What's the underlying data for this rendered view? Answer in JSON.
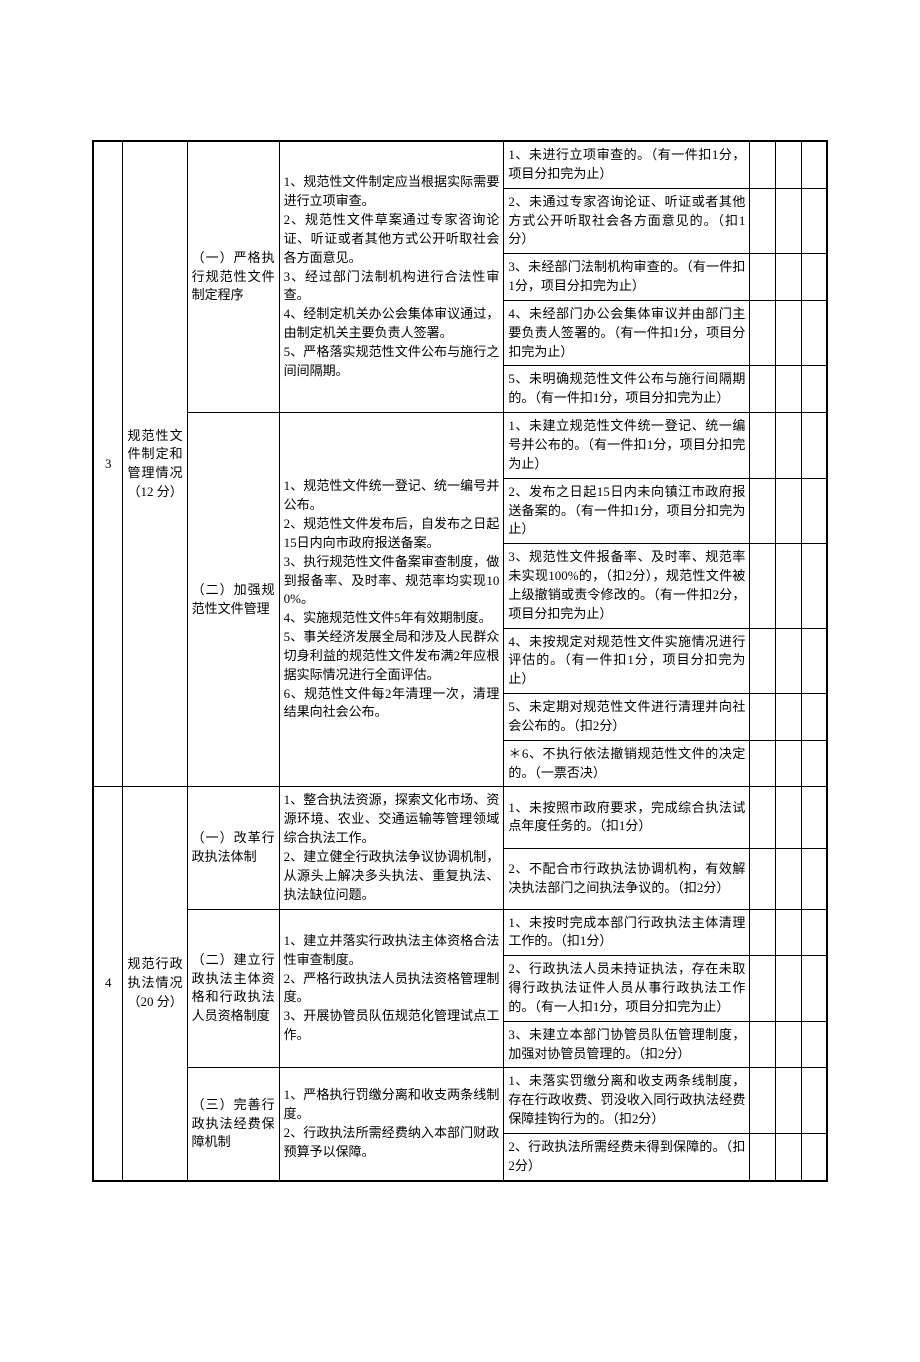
{
  "sections": [
    {
      "num": "3",
      "title": "规范性文件制定和管理情况（12 分）",
      "subs": [
        {
          "title": "（一）严格执行规范性文件制定程序",
          "desc": "1、规范性文件制定应当根据实际需要进行立项审查。\n2、规范性文件草案通过专家咨询论证、听证或者其他方式公开听取社会各方面意见。\n3、经过部门法制机构进行合法性审查。\n4、经制定机关办公会集体审议通过，由制定机关主要负责人签署。\n5、严格落实规范性文件公布与施行之间间隔期。",
          "items": [
            "1、未进行立项审查的。（有一件扣1分，项目分扣完为止）",
            "2、未通过专家咨询论证、听证或者其他方式公开听取社会各方面意见的。（扣1分）",
            "3、未经部门法制机构审查的。（有一件扣1分，项目分扣完为止）",
            "4、未经部门办公会集体审议并由部门主要负责人签署的。（有一件扣1分，项目分扣完为止）",
            "5、未明确规范性文件公布与施行间隔期的。（有一件扣1分，项目分扣完为止）"
          ]
        },
        {
          "title": "（二）加强规范性文件管理",
          "desc": "1、规范性文件统一登记、统一编号并公布。\n2、规范性文件发布后，自发布之日起15日内向市政府报送备案。\n3、执行规范性文件备案审查制度，做到报备率、及时率、规范率均实现100%。\n4、实施规范性文件5年有效期制度。\n5、事关经济发展全局和涉及人民群众切身利益的规范性文件发布满2年应根据实际情况进行全面评估。\n6、规范性文件每2年清理一次，清理结果向社会公布。",
          "items": [
            "1、未建立规范性文件统一登记、统一编号并公布的。（有一件扣1分，项目分扣完为止）",
            "2、发布之日起15日内未向镇江市政府报送备案的。（有一件扣1分，项目分扣完为止）",
            "3、规范性文件报备率、及时率、规范率未实现100%的，（扣2分），规范性文件被上级撤销或责令修改的。（有一件扣2分，项目分扣完为止）",
            "4、未按规定对规范性文件实施情况进行评估的。（有一件扣1分，项目分扣完为止）",
            "5、未定期对规范性文件进行清理并向社会公布的。（扣2分）",
            "＊6、不执行依法撤销规范性文件的决定的。（一票否决）"
          ]
        }
      ]
    },
    {
      "num": "4",
      "title": "规范行政执法情况（20 分）",
      "subs": [
        {
          "title": "（一）改革行政执法体制",
          "desc": "1、整合执法资源，探索文化市场、资源环境、农业、交通运输等管理领域综合执法工作。\n2、建立健全行政执法争议协调机制，从源头上解决多头执法、重复执法、执法缺位问题。",
          "items": [
            "1、未按照市政府要求，完成综合执法试点年度任务的。（扣1分）",
            "2、不配合市行政执法协调机构，有效解决执法部门之间执法争议的。（扣2分）"
          ]
        },
        {
          "title": "（二）建立行政执法主体资格和行政执法人员资格制度",
          "desc": "1、建立并落实行政执法主体资格合法性审查制度。\n2、严格行政执法人员执法资格管理制度。\n3、开展协管员队伍规范化管理试点工作。",
          "items": [
            "1、未按时完成本部门行政执法主体清理工作的。（扣1分）",
            "2、行政执法人员未持证执法，存在未取得行政执法证件人员从事行政执法工作的。（有一人扣1分，项目分扣完为止）",
            "3、未建立本部门协管员队伍管理制度，加强对协管员管理的。（扣2分）"
          ]
        },
        {
          "title": "（三）完善行政执法经费保障机制",
          "desc": "1、严格执行罚缴分离和收支两条线制度。\n2、行政执法所需经费纳入本部门财政预算予以保障。",
          "items": [
            "1、未落实罚缴分离和收支两条线制度，存在行政收费、罚没收入同行政执法经费保障挂钩行为的。（扣2分）",
            "2、行政执法所需经费未得到保障的。（扣2分）"
          ]
        }
      ]
    }
  ]
}
